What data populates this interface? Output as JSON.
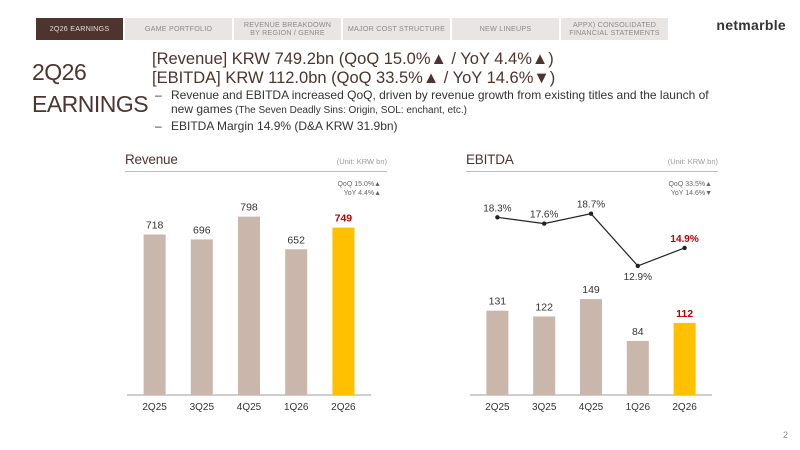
{
  "nav": {
    "tabs": [
      {
        "label": "2Q26 EARNINGS",
        "active": true
      },
      {
        "label": "GAME PORTFOLIO",
        "active": false
      },
      {
        "label": "REVENUE BREAKDOWN\nBY REGION / GENRE",
        "active": false
      },
      {
        "label": "MAJOR COST STRUCTURE",
        "active": false
      },
      {
        "label": "NEW LINEUPS",
        "active": false
      },
      {
        "label": "APPX) CONSOLIDATED\nFINANCIAL STATEMENTS",
        "active": false
      }
    ],
    "logo": "netmarble"
  },
  "section": {
    "line1": "2Q26",
    "line2": "EARNINGS"
  },
  "headline": {
    "revenue": "[Revenue] KRW 749.2bn (QoQ 15.0%▲ / YoY 4.4%▲)",
    "ebitda": "[EBITDA] KRW 112.0bn (QoQ 33.5%▲ / YoY 14.6%▼)"
  },
  "bullets": {
    "b1_main": "Revenue and EBITDA increased QoQ, driven by revenue growth from existing titles and the launch of new games",
    "b1_small": " (The Seven Deadly Sins: Origin, SOL: enchant, etc.)",
    "b2": "EBITDA Margin 14.9% (D&A KRW 31.9bn)"
  },
  "revenue_panel": {
    "title": "Revenue",
    "unit": "(Unit: KRW bn)",
    "growth_qoq": "QoQ 15.0%▲",
    "growth_yoy": "YoY 4.4%▲"
  },
  "ebitda_panel": {
    "title": "EBITDA",
    "unit": "(Unit: KRW bn)",
    "growth_qoq": "QoQ 33.5%▲",
    "growth_yoy": "YoY 14.6%▼"
  },
  "colors": {
    "bar": "#c9b7ab",
    "highlight": "#ffc000",
    "highlight_label": "#c00000",
    "line": "#222222"
  },
  "chart_data": [
    {
      "type": "bar",
      "title": "Revenue",
      "categories": [
        "2Q25",
        "3Q25",
        "4Q25",
        "1Q26",
        "2Q26"
      ],
      "values": [
        718,
        696,
        798,
        652,
        749
      ],
      "labels": [
        "718",
        "696",
        "798",
        "652",
        "749"
      ],
      "highlight_index": 4,
      "ylim": [
        0,
        850
      ],
      "grid": false
    },
    {
      "type": "bar",
      "title": "EBITDA",
      "categories": [
        "2Q25",
        "3Q25",
        "4Q25",
        "1Q26",
        "2Q26"
      ],
      "values": [
        131,
        122,
        149,
        84,
        112
      ],
      "labels": [
        "131",
        "122",
        "149",
        "84",
        "112"
      ],
      "highlight_index": 4,
      "ylim": [
        0,
        160
      ],
      "grid": false,
      "margin_series": {
        "values": [
          18.3,
          17.6,
          18.7,
          12.9,
          14.9
        ],
        "labels": [
          "18.3%",
          "17.6%",
          "18.7%",
          "12.9%",
          "14.9%"
        ],
        "ylim": [
          10,
          20
        ]
      }
    }
  ],
  "page": "2"
}
